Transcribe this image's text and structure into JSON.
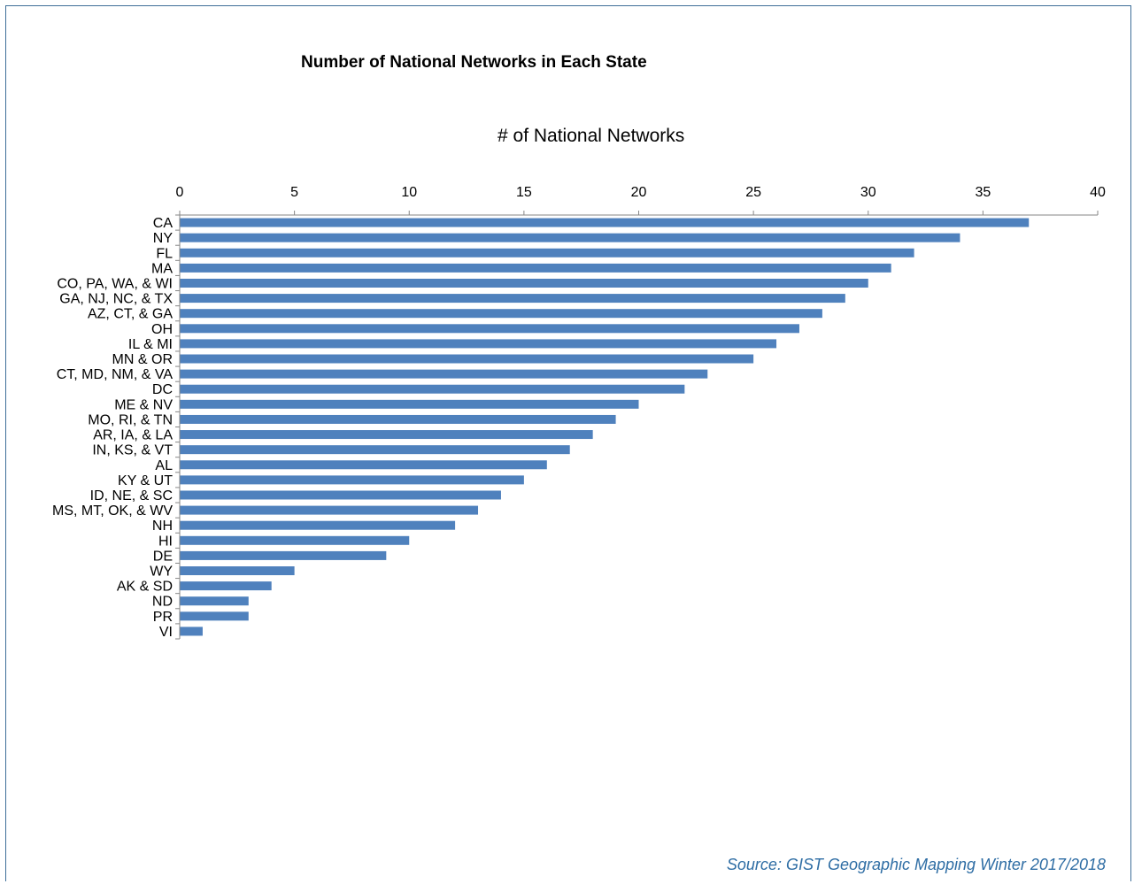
{
  "chart_data": {
    "type": "bar",
    "orientation": "horizontal",
    "title": "Number of National Networks in Each State",
    "xlabel": "# of National Networks",
    "ylabel": "",
    "xlim": [
      0,
      40
    ],
    "xticks": [
      0,
      5,
      10,
      15,
      20,
      25,
      30,
      35,
      40
    ],
    "grid": false,
    "bar_color": "#4f81bd",
    "categories": [
      "CA",
      "NY",
      "FL",
      "MA",
      "CO, PA, WA, & WI",
      "GA, NJ, NC, & TX",
      "AZ, CT, & GA",
      "OH",
      "IL & MI",
      "MN & OR",
      "CT, MD, NM, & VA",
      "DC",
      "ME & NV",
      "MO, RI, & TN",
      "AR, IA, & LA",
      "IN, KS, & VT",
      "AL",
      "KY & UT",
      "ID, NE, & SC",
      "MS, MT, OK, & WV",
      "NH",
      "HI",
      "DE",
      "WY",
      "AK & SD",
      "ND",
      "PR",
      "VI"
    ],
    "values": [
      37,
      34,
      32,
      31,
      30,
      29,
      28,
      27,
      26,
      25,
      23,
      22,
      20,
      19,
      18,
      17,
      16,
      15,
      14,
      13,
      12,
      10,
      9,
      5,
      4,
      3,
      3,
      1
    ],
    "source": "Source: GIST Geographic Mapping Winter 2017/2018"
  },
  "colors": {
    "frame_border": "#3e6e98",
    "source_text": "#2e6da4",
    "axis": "#868686"
  }
}
